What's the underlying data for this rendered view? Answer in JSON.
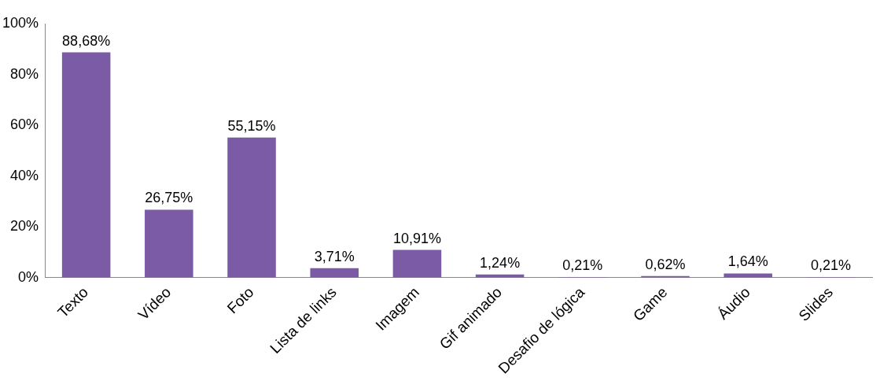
{
  "chart_data": {
    "type": "bar",
    "categories": [
      "Texto",
      "Vídeo",
      "Foto",
      "Lista de links",
      "Imagem",
      "Gif animado",
      "Desafio de lógica",
      "Game",
      "Áudio",
      "Slides"
    ],
    "values": [
      88.68,
      26.75,
      55.15,
      3.71,
      10.91,
      1.24,
      0.21,
      0.62,
      1.64,
      0.21
    ],
    "value_labels": [
      "88,68%",
      "26,75%",
      "55,15%",
      "3,71%",
      "10,91%",
      "1,24%",
      "0,21%",
      "0,62%",
      "1,64%",
      "0,21%"
    ],
    "color": "#7b5aa6",
    "ylim": [
      0,
      100
    ],
    "yticks": [
      {
        "value": 0,
        "label": "0%"
      },
      {
        "value": 20,
        "label": "20%"
      },
      {
        "value": 40,
        "label": "40%"
      },
      {
        "value": 60,
        "label": "60%"
      },
      {
        "value": 80,
        "label": "80%"
      },
      {
        "value": 100,
        "label": "100%"
      }
    ],
    "grid": false,
    "legend": false
  }
}
